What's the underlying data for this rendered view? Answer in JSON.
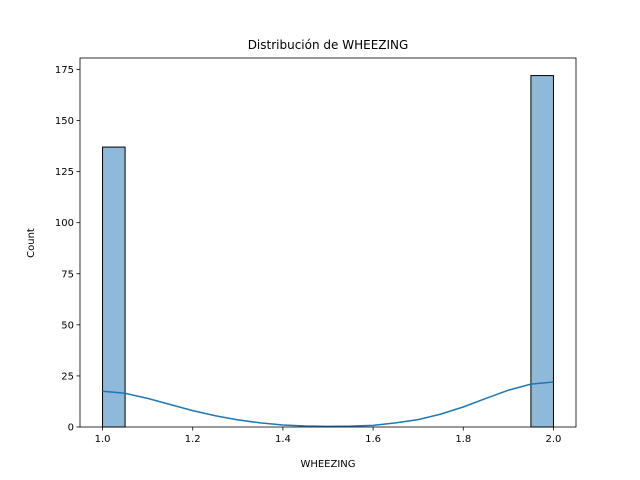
{
  "chart_data": {
    "type": "bar",
    "title": "Distribución de WHEEZING",
    "xlabel": "WHEEZING",
    "ylabel": "Count",
    "xlim": [
      0.95,
      2.05
    ],
    "ylim": [
      0,
      180.6
    ],
    "xticks": [
      1.0,
      1.2,
      1.4,
      1.6,
      1.8,
      2.0
    ],
    "xtick_labels": [
      "1.0",
      "1.2",
      "1.4",
      "1.6",
      "1.8",
      "2.0"
    ],
    "yticks": [
      0,
      25,
      50,
      75,
      100,
      125,
      150,
      175
    ],
    "ytick_labels": [
      "0",
      "25",
      "50",
      "75",
      "100",
      "125",
      "150",
      "175"
    ],
    "bins": [
      {
        "x0": 1.0,
        "x1": 1.05,
        "count": 137
      },
      {
        "x0": 1.95,
        "x1": 2.0,
        "count": 172
      }
    ],
    "kde": {
      "x": [
        1.0,
        1.05,
        1.1,
        1.15,
        1.2,
        1.25,
        1.3,
        1.35,
        1.4,
        1.45,
        1.5,
        1.55,
        1.6,
        1.65,
        1.7,
        1.75,
        1.8,
        1.85,
        1.9,
        1.95,
        2.0
      ],
      "y": [
        17.5,
        16.5,
        14.0,
        11.0,
        8.0,
        5.5,
        3.5,
        2.0,
        1.0,
        0.5,
        0.3,
        0.4,
        0.8,
        2.0,
        3.6,
        6.3,
        9.8,
        14.0,
        18.0,
        21.0,
        22.0
      ]
    },
    "grid": false,
    "colors": {
      "bar_fill": "#8fb9d9",
      "bar_edge": "#000000",
      "kde_line": "#1f77b4"
    }
  }
}
